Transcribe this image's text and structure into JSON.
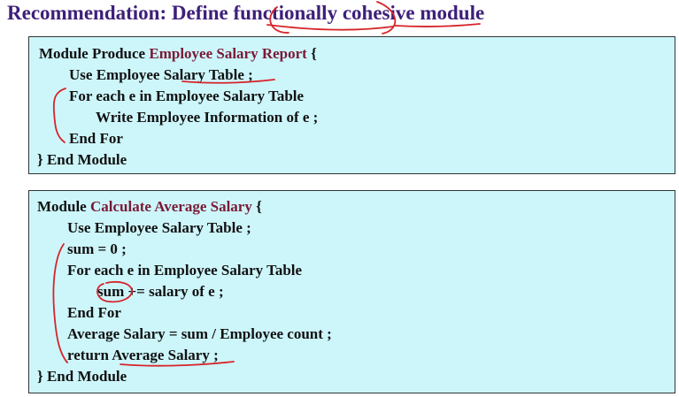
{
  "title": "Recommendation: Define functionally cohesive module",
  "box1": {
    "lines": [
      {
        "pre": "Module Produce ",
        "hl": "Employee Salary Report",
        "post": " {"
      },
      {
        "text": "Use Employee Salary Table ;"
      },
      {
        "text": "For each e in Employee Salary Table"
      },
      {
        "text": "Write Employee Information of  e ;"
      },
      {
        "text": "End For"
      },
      {
        "text": "} End Module"
      }
    ]
  },
  "box2": {
    "lines": [
      {
        "pre": "Module ",
        "hl": "Calculate Average Salary",
        "post": " {"
      },
      {
        "text": "Use Employee Salary Table ;"
      },
      {
        "text": "sum = 0 ;"
      },
      {
        "text": "For each e in Employee Salary Table"
      },
      {
        "text": "sum += salary of  e ;"
      },
      {
        "text": "End For"
      },
      {
        "text": "Average Salary = sum / Employee count ;"
      },
      {
        "text": "return Average Salary ;"
      },
      {
        "text": "} End Module"
      }
    ]
  },
  "colors": {
    "title": "#3d1f7a",
    "highlight": "#7a1a35",
    "box_fill": "#cdf6fb",
    "annotation": "#d6242a"
  }
}
